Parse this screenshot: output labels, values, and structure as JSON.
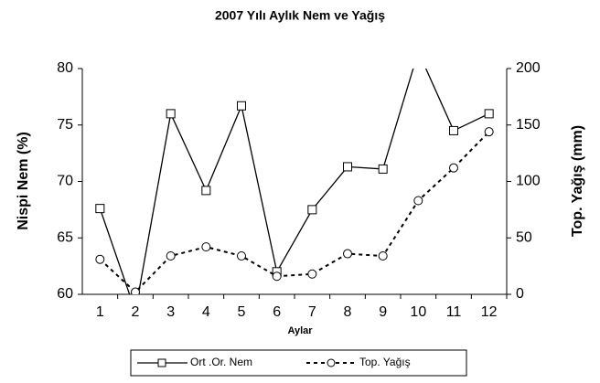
{
  "chart_data": {
    "type": "line",
    "title": "2007 Yılı Aylık Nem ve Yağış",
    "xlabel": "Aylar",
    "ylabel": "Nispi Nem (%)",
    "y2label": "Top. Yağış (mm)",
    "categories": [
      "1",
      "2",
      "3",
      "4",
      "5",
      "6",
      "7",
      "8",
      "9",
      "10",
      "11",
      "12"
    ],
    "series": [
      {
        "name": "Ort .Or. Nem",
        "color": "#000000",
        "marker": "square",
        "dash": false,
        "values": [
          67.6,
          58.5,
          76.0,
          69.2,
          76.7,
          62.0,
          67.5,
          71.3,
          71.1,
          81.5,
          74.5,
          76.0
        ]
      },
      {
        "name": "Top. Yağış",
        "color": "#000000",
        "marker": "circle",
        "dash": true,
        "axis": "y2",
        "values": [
          31,
          2,
          34,
          42,
          34,
          16,
          18,
          36,
          34,
          83,
          112,
          144
        ]
      }
    ],
    "ylim": [
      60,
      80
    ],
    "yticks": [
      60,
      65,
      70,
      75,
      80
    ],
    "y2lim": [
      0,
      200
    ],
    "y2ticks": [
      0,
      50,
      100,
      150,
      200
    ],
    "legend": "bottom"
  }
}
